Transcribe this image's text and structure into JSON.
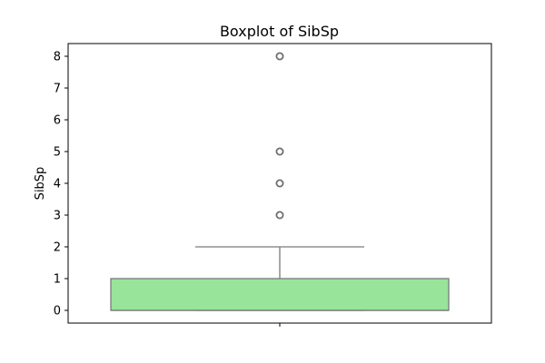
{
  "chart_data": {
    "type": "boxplot",
    "title": "Boxplot of SibSp",
    "xlabel": "",
    "ylabel": "SibSp",
    "ylim": [
      -0.4,
      8.4
    ],
    "yticks": [
      0,
      1,
      2,
      3,
      4,
      5,
      6,
      7,
      8
    ],
    "series": [
      {
        "name": "SibSp",
        "q1": 0,
        "median": 0,
        "q3": 1,
        "whisker_low": 0,
        "whisker_high": 2,
        "outliers": [
          3,
          4,
          5,
          8
        ],
        "color": "#98e49a"
      }
    ],
    "grid": false
  }
}
